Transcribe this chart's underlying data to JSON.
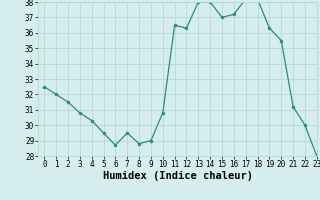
{
  "x": [
    0,
    1,
    2,
    3,
    4,
    5,
    6,
    7,
    8,
    9,
    10,
    11,
    12,
    13,
    14,
    15,
    16,
    17,
    18,
    19,
    20,
    21,
    22,
    23
  ],
  "y": [
    32.5,
    32.0,
    31.5,
    30.8,
    30.3,
    29.5,
    28.7,
    29.5,
    28.8,
    29.0,
    30.8,
    36.5,
    36.3,
    38.0,
    38.0,
    37.0,
    37.2,
    38.2,
    38.2,
    36.3,
    35.5,
    31.2,
    30.0,
    28.0
  ],
  "line_color": "#2d8b7a",
  "marker_color": "#2d8b7a",
  "bg_color": "#d5eeed",
  "grid_color": "#b8d8d5",
  "xlabel": "Humidex (Indice chaleur)",
  "ylim": [
    28,
    38
  ],
  "xlim": [
    -0.5,
    23
  ],
  "yticks": [
    28,
    29,
    30,
    31,
    32,
    33,
    34,
    35,
    36,
    37,
    38
  ],
  "xticks": [
    0,
    1,
    2,
    3,
    4,
    5,
    6,
    7,
    8,
    9,
    10,
    11,
    12,
    13,
    14,
    15,
    16,
    17,
    18,
    19,
    20,
    21,
    22,
    23
  ],
  "tick_fontsize": 5.5,
  "xlabel_fontsize": 7.5
}
